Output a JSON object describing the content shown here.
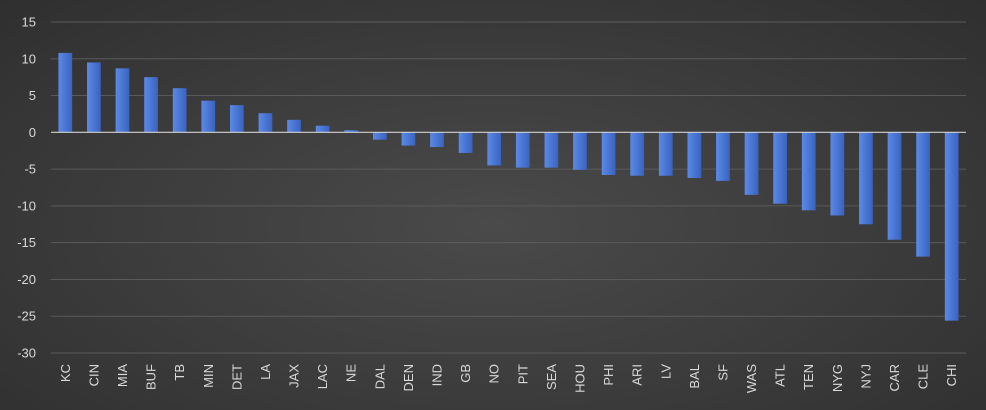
{
  "chart_data": {
    "type": "bar",
    "title": "",
    "xlabel": "",
    "ylabel": "",
    "ylim": [
      -30,
      15
    ],
    "yticks": [
      15,
      10,
      5,
      0,
      -5,
      -10,
      -15,
      -20,
      -25,
      -30
    ],
    "grid": true,
    "legend": "none",
    "categories": [
      "KC",
      "CIN",
      "MIA",
      "BUF",
      "TB",
      "MIN",
      "DET",
      "LA",
      "JAX",
      "LAC",
      "NE",
      "DAL",
      "DEN",
      "IND",
      "GB",
      "NO",
      "PIT",
      "SEA",
      "HOU",
      "PHI",
      "ARI",
      "LV",
      "BAL",
      "SF",
      "WAS",
      "ATL",
      "TEN",
      "NYG",
      "NYJ",
      "CAR",
      "CLE",
      "CHI"
    ],
    "series": [
      {
        "values": [
          10.8,
          9.5,
          8.7,
          7.5,
          6.0,
          4.3,
          3.7,
          2.6,
          1.7,
          0.9,
          0.3,
          -1.0,
          -1.8,
          -2.0,
          -2.8,
          -4.5,
          -4.8,
          -4.8,
          -5.1,
          -5.8,
          -5.9,
          -5.9,
          -6.2,
          -6.6,
          -8.5,
          -9.7,
          -10.6,
          -11.3,
          -12.5,
          -14.6,
          -16.9,
          -25.6
        ],
        "color": "#4a76d4"
      }
    ]
  }
}
